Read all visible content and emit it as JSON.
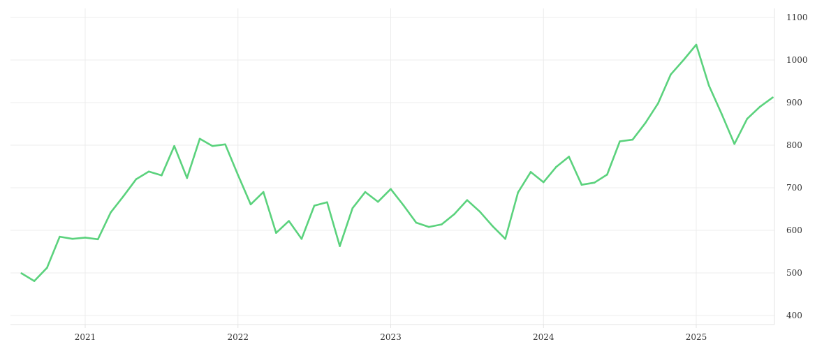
{
  "chart_data": {
    "type": "line",
    "title": "",
    "xlabel": "",
    "ylabel": "",
    "x_ticks": [
      "2021",
      "2022",
      "2023",
      "2024",
      "2025"
    ],
    "y_ticks": [
      400,
      500,
      600,
      700,
      800,
      900,
      1000,
      1100
    ],
    "y_axis_position": "right",
    "grid": true,
    "legend": "none",
    "xlim": [
      "2020-07",
      "2025-07"
    ],
    "ylim": [
      390,
      1110
    ],
    "series": [
      {
        "color": "#5bd27d",
        "points": [
          [
            "2020-08",
            499
          ],
          [
            "2020-09",
            481
          ],
          [
            "2020-10",
            512
          ],
          [
            "2020-11",
            585
          ],
          [
            "2020-12",
            580
          ],
          [
            "2021-01",
            583
          ],
          [
            "2021-02",
            579
          ],
          [
            "2021-03",
            642
          ],
          [
            "2021-04",
            680
          ],
          [
            "2021-05",
            720
          ],
          [
            "2021-06",
            738
          ],
          [
            "2021-07",
            729
          ],
          [
            "2021-08",
            798
          ],
          [
            "2021-09",
            723
          ],
          [
            "2021-10",
            815
          ],
          [
            "2021-11",
            798
          ],
          [
            "2021-12",
            802
          ],
          [
            "2022-01",
            730
          ],
          [
            "2022-02",
            661
          ],
          [
            "2022-03",
            690
          ],
          [
            "2022-04",
            594
          ],
          [
            "2022-05",
            622
          ],
          [
            "2022-06",
            580
          ],
          [
            "2022-07",
            658
          ],
          [
            "2022-08",
            666
          ],
          [
            "2022-09",
            563
          ],
          [
            "2022-10",
            652
          ],
          [
            "2022-11",
            690
          ],
          [
            "2022-12",
            667
          ],
          [
            "2023-01",
            697
          ],
          [
            "2023-02",
            659
          ],
          [
            "2023-03",
            618
          ],
          [
            "2023-04",
            608
          ],
          [
            "2023-05",
            614
          ],
          [
            "2023-06",
            638
          ],
          [
            "2023-07",
            671
          ],
          [
            "2023-08",
            644
          ],
          [
            "2023-09",
            610
          ],
          [
            "2023-10",
            580
          ],
          [
            "2023-11",
            689
          ],
          [
            "2023-12",
            737
          ],
          [
            "2024-01",
            713
          ],
          [
            "2024-02",
            749
          ],
          [
            "2024-03",
            773
          ],
          [
            "2024-04",
            707
          ],
          [
            "2024-05",
            712
          ],
          [
            "2024-06",
            731
          ],
          [
            "2024-07",
            809
          ],
          [
            "2024-08",
            813
          ],
          [
            "2024-09",
            852
          ],
          [
            "2024-10",
            898
          ],
          [
            "2024-11",
            966
          ],
          [
            "2024-12",
            1000
          ],
          [
            "2025-01",
            1036
          ],
          [
            "2025-02",
            940
          ],
          [
            "2025-03",
            873
          ],
          [
            "2025-04",
            803
          ],
          [
            "2025-05",
            862
          ],
          [
            "2025-06",
            890
          ],
          [
            "2025-07",
            912
          ]
        ]
      }
    ]
  }
}
